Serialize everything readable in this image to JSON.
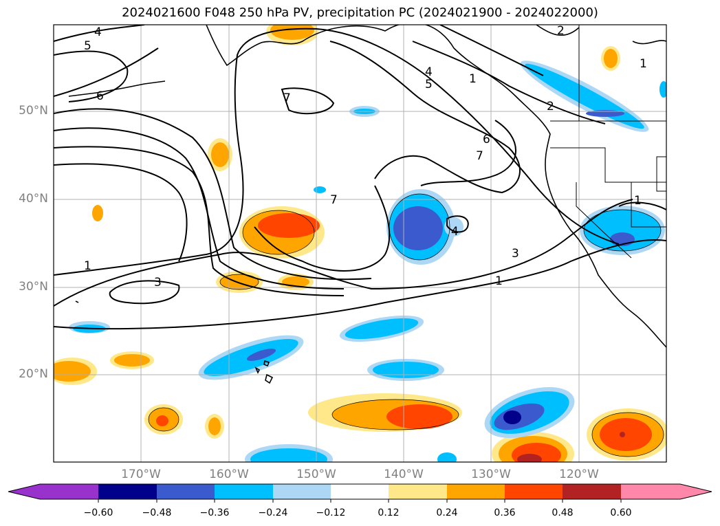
{
  "title": "2024021600 F048 250 hPa PV, precipitation PC (2024021900 - 2024022000)",
  "map": {
    "lon_range": [
      180,
      110
    ],
    "lat_range": [
      10,
      60
    ],
    "lat_ticks": [
      "50°N",
      "40°N",
      "30°N",
      "20°N"
    ],
    "lon_ticks": [
      "170°W",
      "160°W",
      "150°W",
      "140°W",
      "130°W",
      "120°W"
    ],
    "pv_contour_labels": [
      "4",
      "5",
      "6",
      "7",
      "4",
      "5",
      "6",
      "7",
      "2",
      "2",
      "1",
      "7",
      "4",
      "3",
      "1",
      "1",
      "3",
      "1",
      "1"
    ]
  },
  "colorbar": {
    "ticks": [
      "−0.60",
      "−0.48",
      "−0.36",
      "−0.24",
      "−0.12",
      "0.12",
      "0.24",
      "0.36",
      "0.48",
      "0.60"
    ],
    "colors": [
      "#9932cc",
      "#00008b",
      "#3a5acd",
      "#00bfff",
      "#add8f5",
      "#ffffff",
      "#ffe88a",
      "#ffa500",
      "#ff4500",
      "#b22222",
      "#ff88aa"
    ]
  }
}
